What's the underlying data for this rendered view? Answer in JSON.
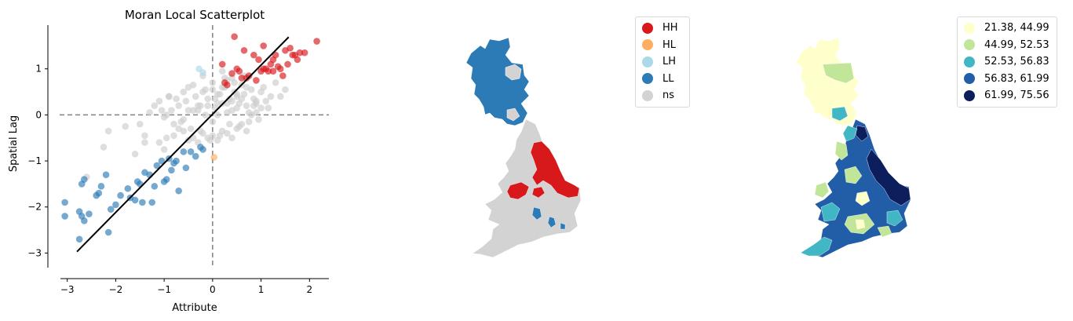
{
  "chart_data": [
    {
      "type": "scatter",
      "title": "Moran Local Scatterplot",
      "xlabel": "Attribute",
      "ylabel": "Spatial Lag",
      "xlim": [
        -3.4,
        2.4
      ],
      "ylim": [
        -3.3,
        1.95
      ],
      "xticks": [
        -3,
        -2,
        -1,
        0,
        1,
        2
      ],
      "yticks": [
        -3,
        -2,
        -1,
        0,
        1
      ],
      "reference_lines": {
        "x": 0,
        "y": 0,
        "style": "dashed",
        "color": "#808080"
      },
      "fit_line": {
        "from": [
          -2.8,
          -2.97
        ],
        "to": [
          1.57,
          1.69
        ],
        "color": "#000000"
      },
      "series": [
        {
          "key": "HH",
          "color": "#d7191c",
          "x": [
            0.45,
            1.05,
            1.5,
            1.65,
            1.8,
            1.9,
            2.15,
            0.85,
            0.95,
            0.65,
            1.25,
            1.35,
            1.55,
            1.7,
            1.25,
            1.0,
            0.75,
            0.5,
            0.6,
            1.15,
            1.4,
            0.25,
            0.4,
            1.2,
            1.6,
            1.05,
            0.9,
            0.55,
            0.2,
            0.3,
            1.45,
            1.75,
            1.3,
            1.1,
            0.7
          ],
          "y": [
            1.7,
            1.5,
            1.4,
            1.3,
            1.35,
            1.35,
            1.6,
            1.3,
            1.2,
            1.4,
            1.2,
            1.05,
            1.1,
            1.3,
            0.95,
            0.95,
            0.85,
            1.0,
            0.8,
            0.95,
            1.0,
            0.7,
            0.9,
            1.1,
            1.45,
            1.0,
            0.75,
            0.95,
            1.1,
            0.65,
            0.85,
            1.2,
            1.3,
            1.0,
            0.8
          ]
        },
        {
          "key": "HL",
          "color": "#fdae61",
          "x": [
            0.03
          ],
          "y": [
            -0.92
          ]
        },
        {
          "key": "LH",
          "color": "#abd9e9",
          "x": [
            -0.28,
            -0.2
          ],
          "y": [
            1.0,
            0.92
          ]
        },
        {
          "key": "LL",
          "color": "#2c7bb6",
          "x": [
            -3.05,
            -3.05,
            -2.75,
            -2.7,
            -2.65,
            -2.75,
            -2.65,
            -2.55,
            -2.4,
            -2.2,
            -2.15,
            -2.1,
            -2.0,
            -1.9,
            -1.75,
            -1.55,
            -1.5,
            -1.45,
            -1.4,
            -1.3,
            -1.25,
            -1.15,
            -1.05,
            -1.0,
            -0.95,
            -0.9,
            -0.85,
            -0.8,
            -0.75,
            -0.6,
            -0.55,
            -0.45,
            -0.35,
            -0.25,
            -0.2,
            -2.7,
            -2.3,
            -1.6,
            -1.2,
            -0.7,
            -2.35,
            -1.7
          ],
          "y": [
            -2.2,
            -1.9,
            -2.1,
            -2.2,
            -2.3,
            -2.7,
            -1.4,
            -2.15,
            -1.75,
            -1.3,
            -2.55,
            -2.05,
            -1.95,
            -1.75,
            -1.6,
            -1.45,
            -1.5,
            -1.9,
            -1.25,
            -1.3,
            -1.9,
            -1.1,
            -1.0,
            -1.45,
            -1.4,
            -0.95,
            -1.2,
            -1.05,
            -1.0,
            -0.8,
            -1.15,
            -0.8,
            -0.9,
            -0.7,
            -0.75,
            -1.5,
            -1.55,
            -1.85,
            -1.55,
            -1.65,
            -1.7,
            -1.8
          ]
        },
        {
          "key": "ns",
          "color": "#cccccc",
          "x": [
            -2.6,
            -2.25,
            -2.15,
            -1.8,
            -1.5,
            -1.4,
            -1.3,
            -1.2,
            -1.1,
            -1.05,
            -1.0,
            -0.95,
            -0.9,
            -0.85,
            -0.8,
            -0.75,
            -0.7,
            -0.65,
            -0.6,
            -0.55,
            -0.5,
            -0.45,
            -0.4,
            -0.35,
            -0.3,
            -0.25,
            -0.2,
            -0.15,
            -0.1,
            -0.05,
            0.0,
            0.05,
            0.1,
            0.15,
            0.2,
            0.25,
            0.3,
            0.35,
            0.4,
            0.45,
            0.5,
            0.55,
            0.6,
            0.65,
            0.7,
            0.75,
            0.8,
            0.85,
            0.9,
            0.95,
            1.0,
            1.05,
            1.1,
            1.15,
            1.2,
            1.3,
            1.4,
            1.5,
            -1.4,
            -1.1,
            -0.95,
            -0.8,
            -0.7,
            -0.6,
            -0.5,
            -0.4,
            -0.3,
            -0.2,
            -0.1,
            0.0,
            0.1,
            0.2,
            0.3,
            0.4,
            0.5,
            0.6,
            0.7,
            0.8,
            0.9,
            1.0,
            -0.3,
            -0.2,
            -0.1,
            0.0,
            0.1,
            0.2,
            0.3,
            0.4,
            0.5,
            -0.15,
            0.05,
            0.25,
            0.45,
            0.65,
            -0.6,
            -0.4,
            0.15,
            0.35,
            0.55,
            0.75,
            -1.6,
            -1.0,
            -0.9,
            -0.5,
            0.1,
            0.3,
            0.5,
            0.7,
            0.9,
            -0.25,
            0.0,
            0.2,
            0.4,
            0.6,
            0.85
          ],
          "y": [
            -1.35,
            -0.7,
            -0.35,
            -0.25,
            -0.2,
            -0.45,
            0.05,
            0.2,
            0.3,
            0.1,
            -0.05,
            0.0,
            0.4,
            0.1,
            -0.2,
            0.35,
            0.2,
            -0.15,
            0.5,
            0.3,
            0.1,
            -0.3,
            0.65,
            0.4,
            0.1,
            -0.35,
            0.85,
            0.55,
            0.2,
            -0.55,
            0.7,
            0.35,
            0.0,
            -0.45,
            0.95,
            0.6,
            0.25,
            -0.2,
            0.8,
            0.5,
            0.15,
            -0.25,
            0.65,
            0.45,
            0.2,
            -0.15,
            0.55,
            0.35,
            0.05,
            -0.1,
            0.5,
            0.6,
            0.3,
            0.15,
            0.4,
            0.7,
            0.4,
            0.55,
            -0.6,
            -0.6,
            -0.5,
            -0.45,
            -0.3,
            -0.35,
            -0.55,
            -0.5,
            -0.6,
            -0.4,
            -0.5,
            -0.45,
            -0.55,
            -0.35,
            -0.4,
            -0.5,
            -0.3,
            -0.2,
            -0.35,
            0.0,
            0.3,
            0.15,
            0.2,
            0.5,
            0.35,
            0.55,
            0.45,
            0.6,
            0.05,
            0.3,
            0.45,
            0.0,
            0.15,
            0.8,
            0.7,
            0.85,
            -0.1,
            0.1,
            0.45,
            0.35,
            0.25,
            0.05,
            -0.85,
            -0.75,
            0.4,
            0.6,
            0.25,
            0.75,
            0.4,
            0.6,
            0.25,
            0.2,
            -0.15,
            0.25,
            0.1,
            0.35,
            0.2
          ]
        }
      ]
    },
    {
      "type": "map",
      "legend": [
        {
          "label": "HH",
          "color": "#d7191c"
        },
        {
          "label": "HL",
          "color": "#fdae61"
        },
        {
          "label": "LH",
          "color": "#abd9e9"
        },
        {
          "label": "LL",
          "color": "#2c7bb6"
        },
        {
          "label": "ns",
          "color": "#d3d3d3"
        }
      ]
    },
    {
      "type": "map",
      "legend": [
        {
          "label": "21.38, 44.99",
          "color": "#ffffcc"
        },
        {
          "label": "44.99, 52.53",
          "color": "#c2e699"
        },
        {
          "label": "52.53, 56.83",
          "color": "#41b6c4"
        },
        {
          "label": "56.83, 61.99",
          "color": "#225ea8"
        },
        {
          "label": "61.99, 75.56",
          "color": "#0c1f5c"
        }
      ]
    }
  ]
}
